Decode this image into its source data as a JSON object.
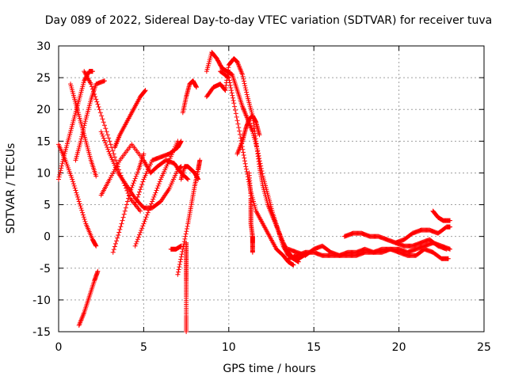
{
  "chart_data": {
    "type": "scatter",
    "title": "Day 089 of 2022, Sidereal Day-to-day VTEC variation (SDTVAR) for receiver tuva",
    "xlabel": "GPS time / hours",
    "ylabel": "SDTVAR / TECUs",
    "xlim": [
      0,
      25
    ],
    "ylim": [
      -15,
      30
    ],
    "xticks": [
      0,
      5,
      10,
      15,
      20,
      25
    ],
    "yticks": [
      -15,
      -10,
      -5,
      0,
      5,
      10,
      15,
      20,
      25,
      30
    ],
    "grid": true,
    "marker": "+",
    "marker_color": "#ff0000",
    "legend": "none",
    "series": [
      {
        "name": "trace-01",
        "x": [
          0.0,
          0.3,
          0.6,
          0.9,
          1.2,
          1.5,
          1.8,
          2.0
        ],
        "y": [
          9.0,
          12.5,
          15.5,
          18.5,
          21.5,
          24.5,
          26.0,
          26.0
        ]
      },
      {
        "name": "trace-02",
        "x": [
          0.0,
          0.4,
          0.8,
          1.2,
          1.6,
          2.0,
          2.2
        ],
        "y": [
          14.5,
          12.0,
          9.0,
          5.5,
          2.0,
          -0.5,
          -1.5
        ]
      },
      {
        "name": "trace-03",
        "x": [
          0.7,
          1.0,
          1.3,
          1.6,
          1.9,
          2.2
        ],
        "y": [
          24.0,
          21.0,
          18.0,
          15.0,
          12.0,
          9.5
        ]
      },
      {
        "name": "trace-04",
        "x": [
          1.0,
          1.3,
          1.6,
          1.9,
          2.2,
          2.7
        ],
        "y": [
          12.0,
          15.0,
          18.5,
          21.5,
          24.0,
          24.5
        ]
      },
      {
        "name": "trace-05",
        "x": [
          1.2,
          1.5,
          1.8,
          2.1,
          2.3
        ],
        "y": [
          -14.0,
          -12.0,
          -9.5,
          -7.0,
          -5.5
        ]
      },
      {
        "name": "trace-06",
        "x": [
          1.5,
          1.9,
          2.4,
          3.0,
          3.6,
          4.2,
          4.8
        ],
        "y": [
          26.0,
          24.0,
          20.0,
          15.0,
          10.0,
          6.0,
          4.0
        ]
      },
      {
        "name": "trace-07",
        "x": [
          2.5,
          3.0,
          3.6,
          4.3,
          5.0,
          5.4,
          5.8,
          6.3,
          6.8,
          7.2,
          7.6
        ],
        "y": [
          6.5,
          9.0,
          12.0,
          14.5,
          12.0,
          10.0,
          11.0,
          12.0,
          11.5,
          10.0,
          9.0
        ]
      },
      {
        "name": "trace-08",
        "x": [
          2.5,
          3.0,
          3.5,
          4.0,
          4.5,
          5.0,
          5.5,
          6.0,
          6.5,
          7.0,
          7.2
        ],
        "y": [
          16.5,
          13.0,
          10.0,
          8.0,
          6.0,
          4.5,
          4.5,
          5.5,
          7.5,
          10.5,
          11.0
        ]
      },
      {
        "name": "trace-09",
        "x": [
          3.2,
          3.7,
          4.2,
          4.7,
          5.0
        ],
        "y": [
          -2.5,
          2.0,
          7.0,
          10.5,
          13.0
        ]
      },
      {
        "name": "trace-10",
        "x": [
          3.3,
          3.6,
          4.0,
          4.4,
          4.8,
          5.1
        ],
        "y": [
          14.0,
          16.0,
          18.0,
          20.0,
          22.0,
          23.0
        ]
      },
      {
        "name": "trace-11",
        "x": [
          4.5,
          5.0,
          5.5,
          6.0,
          6.5,
          7.0
        ],
        "y": [
          -1.5,
          2.0,
          5.5,
          9.0,
          12.0,
          15.0
        ]
      },
      {
        "name": "trace-12",
        "x": [
          4.5,
          5.0,
          5.5,
          6.0,
          6.5,
          7.0,
          7.2
        ],
        "y": [
          5.0,
          9.0,
          12.0,
          12.5,
          13.0,
          14.0,
          15.0
        ]
      },
      {
        "name": "trace-13",
        "x": [
          6.6,
          6.9,
          7.2
        ],
        "y": [
          -2.0,
          -2.0,
          -1.5
        ]
      },
      {
        "name": "trace-14",
        "x": [
          7.2,
          7.4,
          7.6,
          7.8,
          8.0,
          8.2
        ],
        "y": [
          9.0,
          11.0,
          11.0,
          10.5,
          10.0,
          9.0
        ]
      },
      {
        "name": "trace-15",
        "x": [
          7.0,
          7.3,
          7.6,
          7.8,
          8.0,
          8.2,
          8.3
        ],
        "y": [
          -6.0,
          -2.0,
          2.0,
          5.0,
          8.0,
          10.5,
          12.0
        ]
      },
      {
        "name": "trace-16",
        "x": [
          7.5,
          7.5,
          7.5,
          7.5,
          7.5,
          7.5,
          7.5
        ],
        "y": [
          -1.0,
          -3.0,
          -5.0,
          -7.0,
          -9.5,
          -12.5,
          -15.0
        ]
      },
      {
        "name": "trace-17",
        "x": [
          7.3,
          7.5,
          7.7,
          7.9,
          8.1
        ],
        "y": [
          19.5,
          22.0,
          24.0,
          24.5,
          23.5
        ]
      },
      {
        "name": "trace-18",
        "x": [
          8.7,
          9.0,
          9.3,
          9.6,
          9.9,
          10.2,
          10.5,
          10.8,
          11.1,
          11.4,
          11.7,
          12.0,
          12.3,
          12.6,
          12.9,
          13.2,
          13.5,
          13.8,
          14.1
        ],
        "y": [
          26.0,
          29.0,
          28.0,
          26.5,
          26.0,
          25.5,
          23.0,
          20.5,
          18.5,
          16.5,
          13.5,
          9.5,
          6.5,
          3.5,
          1.0,
          -1.5,
          -3.0,
          -3.5,
          -4.0
        ]
      },
      {
        "name": "trace-19",
        "x": [
          8.7,
          9.1,
          9.5,
          9.8,
          10.0,
          10.3,
          10.5,
          10.8,
          11.1,
          11.4,
          11.6,
          11.8,
          12.0,
          12.3,
          12.6,
          12.9,
          13.2,
          13.5,
          13.8,
          14.1,
          14.4
        ],
        "y": [
          22.0,
          23.5,
          24.0,
          23.0,
          27.0,
          28.0,
          27.5,
          25.5,
          22.0,
          19.0,
          15.0,
          11.0,
          8.0,
          5.0,
          3.0,
          1.0,
          -1.0,
          -2.5,
          -3.5,
          -3.5,
          -3.0
        ]
      },
      {
        "name": "trace-20",
        "x": [
          9.5,
          10.0,
          10.3,
          10.7,
          11.0,
          11.3,
          11.6,
          12.0,
          12.4,
          12.8,
          13.2,
          13.5,
          13.8
        ],
        "y": [
          26.0,
          25.0,
          21.0,
          15.5,
          11.0,
          7.0,
          4.0,
          2.0,
          0.0,
          -2.0,
          -3.0,
          -4.0,
          -4.5
        ]
      },
      {
        "name": "trace-21",
        "x": [
          10.5,
          10.8,
          11.0,
          11.2,
          11.4,
          11.6,
          11.8
        ],
        "y": [
          13.0,
          15.0,
          17.0,
          18.5,
          19.0,
          18.0,
          16.0
        ]
      },
      {
        "name": "trace-22",
        "x": [
          11.2,
          11.3,
          11.3,
          11.3,
          11.4,
          11.4,
          11.4
        ],
        "y": [
          10.0,
          6.0,
          4.0,
          2.0,
          0.0,
          -1.0,
          -2.5
        ]
      },
      {
        "name": "trace-23",
        "x": [
          13.5,
          14.0,
          14.5,
          15.0,
          15.5,
          16.0,
          16.5,
          17.0,
          17.5,
          18.0,
          18.5,
          19.0,
          19.5,
          20.0,
          20.5,
          21.0,
          21.5,
          22.0,
          22.5,
          23.0
        ],
        "y": [
          -3.5,
          -3.0,
          -2.5,
          -2.5,
          -3.0,
          -3.0,
          -3.0,
          -2.5,
          -2.5,
          -2.0,
          -2.5,
          -2.5,
          -2.0,
          -2.0,
          -2.5,
          -2.0,
          -1.5,
          -1.0,
          -1.5,
          -2.0
        ]
      },
      {
        "name": "trace-24",
        "x": [
          13.5,
          14.0,
          14.5,
          15.0,
          15.5,
          16.0,
          16.5,
          17.0,
          17.5,
          18.0,
          18.5,
          19.0,
          19.5,
          20.0,
          20.5,
          21.0,
          21.5,
          22.0,
          22.5,
          22.9
        ],
        "y": [
          -2.0,
          -2.5,
          -3.0,
          -2.0,
          -1.5,
          -2.5,
          -3.0,
          -3.0,
          -3.0,
          -2.5,
          -2.5,
          -2.0,
          -2.0,
          -2.5,
          -3.0,
          -3.0,
          -2.0,
          -2.5,
          -3.5,
          -3.5
        ]
      },
      {
        "name": "trace-25",
        "x": [
          16.8,
          17.3,
          17.8,
          18.3,
          18.8,
          19.3,
          19.8,
          20.3,
          20.8,
          21.3,
          21.8,
          22.3,
          22.8
        ],
        "y": [
          0.0,
          0.5,
          0.5,
          0.0,
          0.0,
          -0.5,
          -1.0,
          -1.5,
          -1.5,
          -1.0,
          -0.5,
          -1.5,
          -2.0
        ]
      },
      {
        "name": "trace-26",
        "x": [
          19.8,
          20.3,
          20.8,
          21.3,
          21.8,
          22.3,
          22.8,
          23.0
        ],
        "y": [
          -1.0,
          -0.5,
          0.5,
          1.0,
          1.0,
          0.5,
          1.5,
          1.5
        ]
      },
      {
        "name": "trace-27",
        "x": [
          22.0,
          22.3,
          22.6,
          23.0
        ],
        "y": [
          4.0,
          3.0,
          2.5,
          2.5
        ]
      }
    ]
  }
}
